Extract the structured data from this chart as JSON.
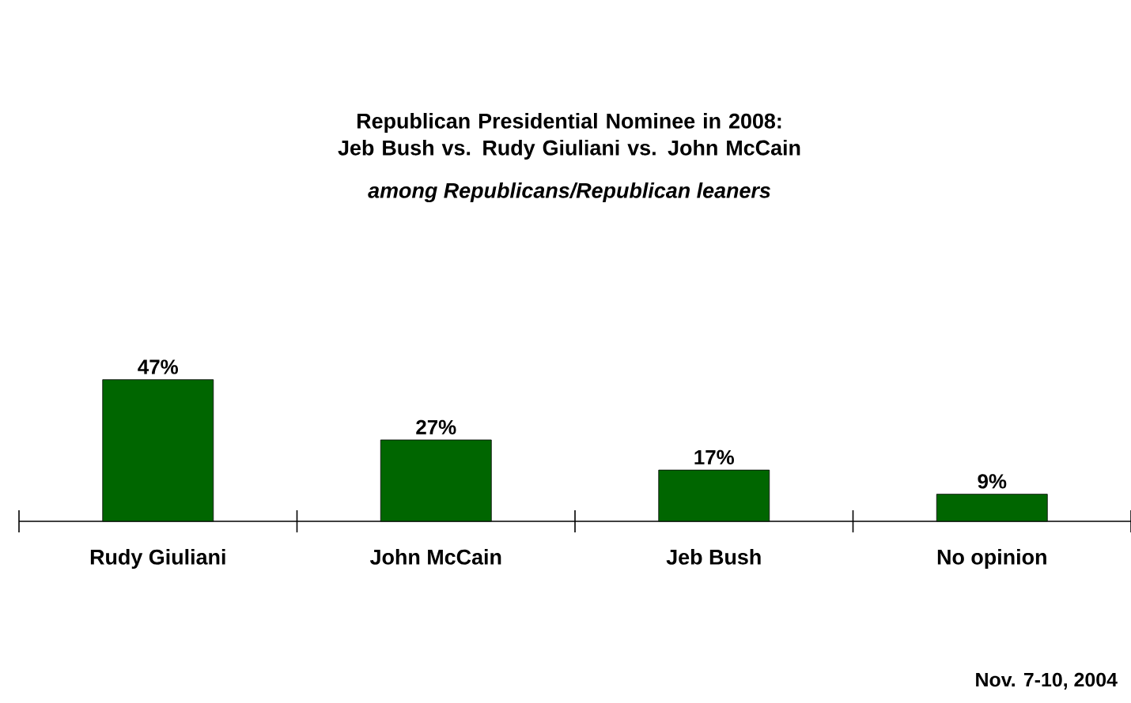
{
  "chart_data": {
    "type": "bar",
    "title": "Republican Presidential Nominee in 2008:\nJeb Bush vs. Rudy Giuliani vs. John McCain",
    "subtitle": "among Republicans/Republican leaners",
    "categories": [
      "Rudy Giuliani",
      "John McCain",
      "Jeb Bush",
      "No opinion"
    ],
    "values": [
      47,
      27,
      17,
      9
    ],
    "color": "#006600",
    "data_labels": true,
    "value_labels": [
      "47%",
      "27%",
      "17%",
      "9%"
    ],
    "annotations": [
      "Nov. 7-10, 2004"
    ]
  }
}
